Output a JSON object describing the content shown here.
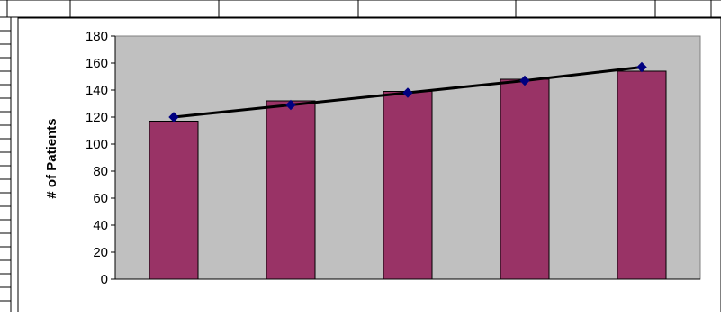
{
  "chart_data": {
    "type": "bar",
    "ylabel": "# of Patients",
    "ylim": [
      0,
      180
    ],
    "y_ticks": [
      0,
      20,
      40,
      60,
      80,
      100,
      120,
      140,
      160,
      180
    ],
    "grid": false,
    "series": [
      {
        "type": "bar",
        "values": [
          117,
          132,
          139,
          148,
          154
        ]
      },
      {
        "type": "line",
        "values": [
          120,
          129,
          138,
          147,
          157
        ]
      }
    ],
    "colors": {
      "plot_background": "#c0c0c0",
      "bar_fill": "#993366",
      "trend_line": "#000000",
      "marker": "#000080"
    }
  }
}
